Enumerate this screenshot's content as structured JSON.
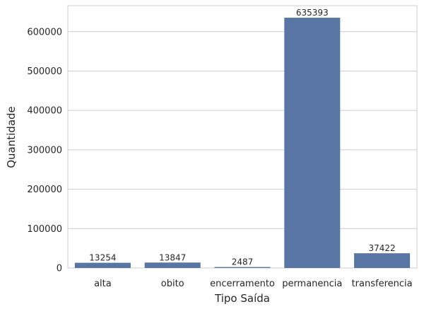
{
  "chart_data": {
    "type": "bar",
    "categories": [
      "alta",
      "obito",
      "encerramento",
      "permanencia",
      "transferencia"
    ],
    "values": [
      13254,
      13847,
      2487,
      635393,
      37422
    ],
    "data_labels": [
      "13254",
      "13847",
      "2487",
      "635393",
      "37422"
    ],
    "xlabel": "Tipo Saída",
    "ylabel": "Quantidade",
    "ylim": [
      0,
      666000
    ],
    "yticks": [
      0,
      100000,
      200000,
      300000,
      400000,
      500000,
      600000
    ],
    "ytick_labels": [
      "0",
      "100000",
      "200000",
      "300000",
      "400000",
      "500000",
      "600000"
    ],
    "grid": "horizontal",
    "bar_color": "#5875a4"
  }
}
